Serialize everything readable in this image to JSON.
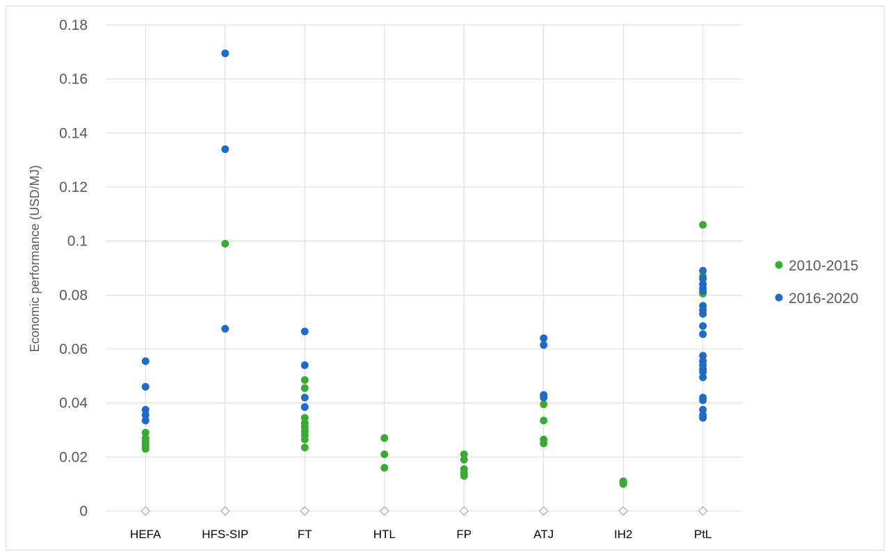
{
  "chart_data": {
    "type": "scatter",
    "title": "",
    "xlabel": "",
    "ylabel": "Economic performance (USD/MJ)",
    "ylim": [
      0,
      0.18
    ],
    "yticks": [
      "0",
      "0.02",
      "0.04",
      "0.06",
      "0.08",
      "0.1",
      "0.12",
      "0.14",
      "0.16",
      "0.18"
    ],
    "grid": true,
    "legend_position": "right",
    "categories": [
      "HEFA",
      "HFS-SIP",
      "FT",
      "HTL",
      "FP",
      "ATJ",
      "IH2",
      "PtL"
    ],
    "series": [
      {
        "name": "2010-2015",
        "color": "#3aaa35",
        "points": {
          "HEFA": [
            0.029,
            0.027,
            0.026,
            0.025,
            0.024,
            0.023
          ],
          "HFS-SIP": [
            0.099
          ],
          "FT": [
            0.0485,
            0.0455,
            0.0345,
            0.0325,
            0.031,
            0.0295,
            0.028,
            0.0265,
            0.0235
          ],
          "HTL": [
            0.027,
            0.021,
            0.016
          ],
          "FP": [
            0.021,
            0.019,
            0.0155,
            0.014,
            0.013
          ],
          "ATJ": [
            0.0395,
            0.0335,
            0.0265,
            0.025
          ],
          "IH2": [
            0.011,
            0.0105,
            0.01
          ],
          "PtL": [
            0.106,
            0.087,
            0.0805
          ]
        }
      },
      {
        "name": "2016-2020",
        "color": "#1f6bc5",
        "points": {
          "HEFA": [
            0.0555,
            0.046,
            0.0375,
            0.0355,
            0.0335
          ],
          "HFS-SIP": [
            0.1695,
            0.134,
            0.0675
          ],
          "FT": [
            0.0665,
            0.054,
            0.042,
            0.0385
          ],
          "HTL": [],
          "FP": [],
          "ATJ": [
            0.064,
            0.0615,
            0.043,
            0.042
          ],
          "IH2": [],
          "PtL": [
            0.089,
            0.086,
            0.084,
            0.0825,
            0.0815,
            0.076,
            0.0745,
            0.073,
            0.0685,
            0.0655,
            0.0575,
            0.0555,
            0.054,
            0.0525,
            0.0515,
            0.0495,
            0.042,
            0.041,
            0.0375,
            0.0355,
            0.0345
          ]
        }
      }
    ],
    "baseline_marker": "diamond"
  }
}
